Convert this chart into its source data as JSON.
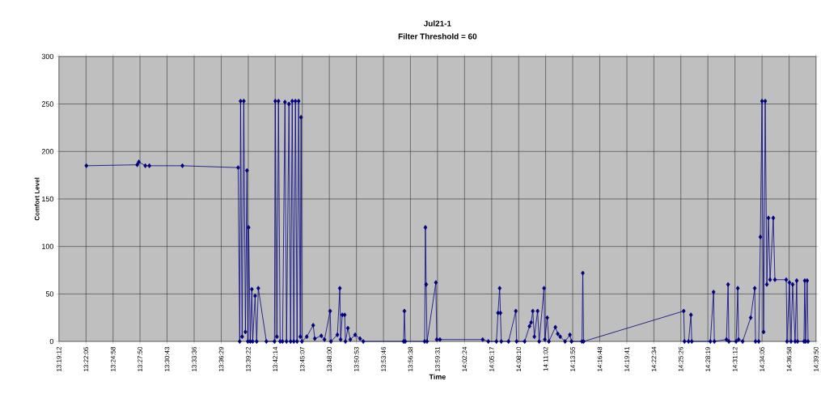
{
  "chart_data": {
    "type": "line",
    "title": "Jul21-1",
    "subtitle": "Filter Threshold = 60",
    "xlabel": "Time",
    "ylabel": "Comfort Level",
    "x": [
      13.3687,
      13.459,
      13.4618,
      13.4733,
      13.4805,
      13.5392,
      13.6381,
      13.6409,
      13.6424,
      13.6452,
      13.6481,
      13.651,
      13.6538,
      13.6553,
      13.6567,
      13.6596,
      13.6624,
      13.6639,
      13.6682,
      13.671,
      13.6739,
      13.6882,
      13.7026,
      13.704,
      13.7069,
      13.7097,
      13.7126,
      13.7169,
      13.7212,
      13.724,
      13.7283,
      13.7312,
      13.7341,
      13.7369,
      13.7398,
      13.7427,
      13.7455,
      13.7484,
      13.7498,
      13.7513,
      13.7599,
      13.7713,
      13.7742,
      13.7857,
      13.7914,
      13.8014,
      13.8029,
      13.8143,
      13.8186,
      13.82,
      13.8229,
      13.8272,
      13.8286,
      13.8329,
      13.8372,
      13.8458,
      13.8544,
      13.8602,
      13.9318,
      13.9332,
      13.9347,
      13.9691,
      13.9705,
      13.9719,
      13.9734,
      13.9891,
      13.9906,
      13.9963,
      14.0722,
      14.0822,
      14.0966,
      14.0994,
      14.1023,
      14.1037,
      14.1052,
      14.1181,
      14.131,
      14.1324,
      14.1467,
      14.1553,
      14.1582,
      14.1611,
      14.1639,
      14.1697,
      14.1725,
      14.1811,
      14.1825,
      14.1868,
      14.1897,
      14.2012,
      14.2055,
      14.2098,
      14.2184,
      14.227,
      14.2298,
      14.2485,
      14.2499,
      14.2513,
      14.429,
      14.4304,
      14.4376,
      14.4419,
      14.4433,
      14.4763,
      14.482,
      14.4834,
      14.5049,
      14.5078,
      14.5092,
      14.5221,
      14.525,
      14.5264,
      14.5336,
      14.5479,
      14.5551,
      14.5565,
      14.5622,
      14.5651,
      14.568,
      14.5708,
      14.5737,
      14.5766,
      14.5794,
      14.5823,
      14.588,
      14.5909,
      14.611,
      14.6124,
      14.6167,
      14.6195,
      14.6224,
      14.6267,
      14.6296,
      14.631,
      14.6425,
      14.6439,
      14.6454,
      14.6482,
      14.6497
    ],
    "series": [
      {
        "color": "#000080",
        "values": [
          185,
          186,
          189,
          185,
          185,
          185,
          183,
          0,
          253,
          5,
          253,
          10,
          180,
          0,
          120,
          0,
          55,
          0,
          48,
          0,
          56,
          0,
          0,
          253,
          5,
          253,
          0,
          0,
          252,
          0,
          250,
          0,
          253,
          0,
          253,
          0,
          253,
          5,
          236,
          0,
          5,
          17,
          3,
          6,
          2,
          32,
          0,
          7,
          56,
          2,
          28,
          28,
          0,
          14,
          2,
          7,
          3,
          0,
          0,
          32,
          0,
          0,
          120,
          60,
          0,
          62,
          2,
          2,
          2,
          0,
          0,
          30,
          56,
          30,
          0,
          0,
          32,
          0,
          0,
          16,
          20,
          32,
          5,
          32,
          0,
          56,
          2,
          25,
          0,
          15,
          8,
          5,
          0,
          7,
          0,
          0,
          72,
          0,
          32,
          0,
          0,
          28,
          0,
          0,
          52,
          0,
          2,
          60,
          0,
          0,
          56,
          2,
          0,
          25,
          56,
          0,
          0,
          110,
          253,
          10,
          253,
          60,
          130,
          65,
          130,
          65,
          65,
          0,
          62,
          0,
          60,
          0,
          64,
          0,
          0,
          64,
          0,
          64,
          0
        ]
      }
    ],
    "xlim": [
      13.32,
      14.6639
    ],
    "ylim": [
      0,
      300
    ],
    "xticks": [
      {
        "value": 13.32,
        "label": "13:19:12"
      },
      {
        "value": 13.3681,
        "label": "13:22:05"
      },
      {
        "value": 13.4161,
        "label": "13:24:58"
      },
      {
        "value": 13.4639,
        "label": "13:27:50"
      },
      {
        "value": 13.5119,
        "label": "13:30:43"
      },
      {
        "value": 13.56,
        "label": "13:33:36"
      },
      {
        "value": 13.6081,
        "label": "13:36:29"
      },
      {
        "value": 13.6561,
        "label": "13:39:22"
      },
      {
        "value": 13.7039,
        "label": "13:42:14"
      },
      {
        "value": 13.7519,
        "label": "13:45:07"
      },
      {
        "value": 13.8,
        "label": "13:48:00"
      },
      {
        "value": 13.8481,
        "label": "13:50:53"
      },
      {
        "value": 13.8961,
        "label": "13:53:46"
      },
      {
        "value": 13.9439,
        "label": "13:56:38"
      },
      {
        "value": 13.9919,
        "label": "13:59:31"
      },
      {
        "value": 14.04,
        "label": "14:02:24"
      },
      {
        "value": 14.0881,
        "label": "14:05:17"
      },
      {
        "value": 14.1361,
        "label": "14:08:10"
      },
      {
        "value": 14.1839,
        "label": "14:11:02"
      },
      {
        "value": 14.2319,
        "label": "14:13:55"
      },
      {
        "value": 14.28,
        "label": "14:16:48"
      },
      {
        "value": 14.3281,
        "label": "14:19:41"
      },
      {
        "value": 14.3761,
        "label": "14:22:34"
      },
      {
        "value": 14.4239,
        "label": "14:25:26"
      },
      {
        "value": 14.4719,
        "label": "14:28:19"
      },
      {
        "value": 14.52,
        "label": "14:31:12"
      },
      {
        "value": 14.5681,
        "label": "14:34:05"
      },
      {
        "value": 14.6161,
        "label": "14:36:58"
      },
      {
        "value": 14.6639,
        "label": "14:39:50"
      }
    ],
    "yticks": [
      0,
      50,
      100,
      150,
      200,
      250,
      300
    ],
    "grid": true,
    "marker": "diamond",
    "line_style": "solid"
  }
}
